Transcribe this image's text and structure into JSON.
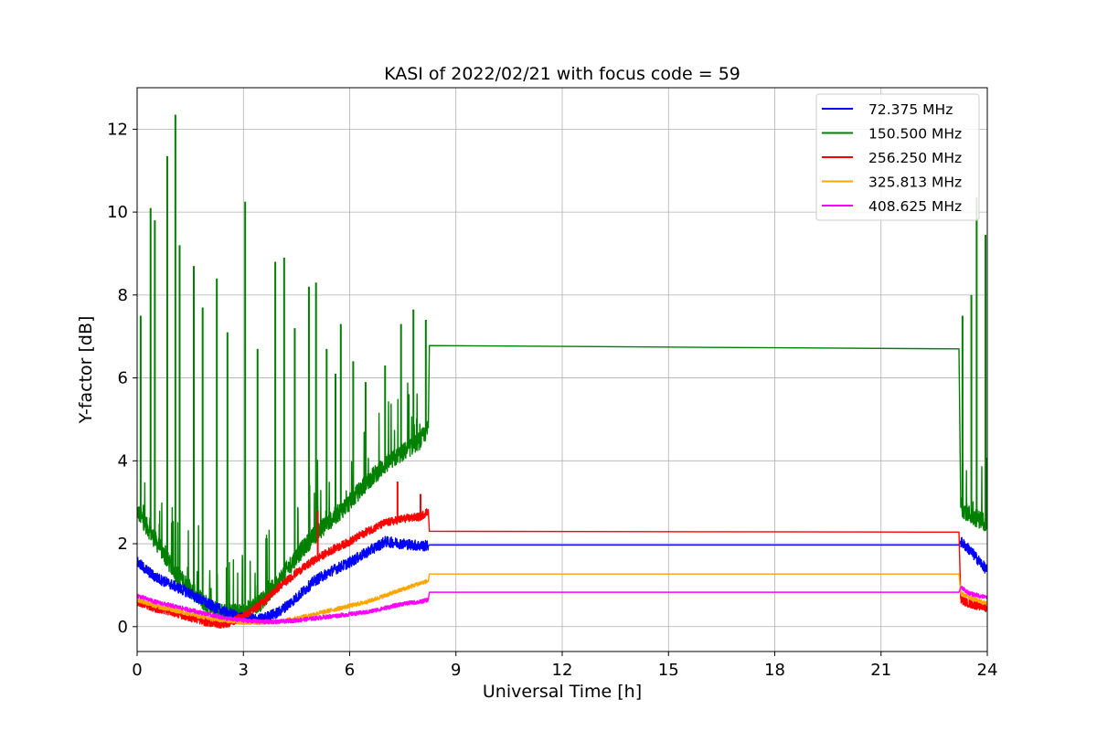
{
  "chart_data": {
    "type": "line",
    "title": "KASI of 2022/02/21 with focus code = 59",
    "xlabel": "Universal Time [h]",
    "ylabel": "Y-factor [dB]",
    "xlim": [
      0,
      24
    ],
    "ylim": [
      -0.6,
      13.0
    ],
    "xticks": [
      0,
      3,
      6,
      9,
      12,
      15,
      18,
      21,
      24
    ],
    "yticks": [
      0,
      2,
      4,
      6,
      8,
      10,
      12
    ],
    "grid": true,
    "legend_position": "top-right",
    "series": [
      {
        "name": " 72.375 MHz",
        "color": "#0000ff",
        "noise": 0.13,
        "x": [
          0,
          0.5,
          1.0,
          1.5,
          2.0,
          2.5,
          3.0,
          3.5,
          4.0,
          4.5,
          5.0,
          5.5,
          6.0,
          6.5,
          7.0,
          7.5,
          8.0,
          8.22,
          8.25,
          23.2,
          23.25,
          23.5,
          24.0
        ],
        "y": [
          1.55,
          1.2,
          1.0,
          0.8,
          0.55,
          0.35,
          0.2,
          0.18,
          0.35,
          0.7,
          1.1,
          1.35,
          1.55,
          1.8,
          2.05,
          2.0,
          1.95,
          1.95,
          1.97,
          1.97,
          2.05,
          1.85,
          1.35
        ]
      },
      {
        "name": "150.500 MHz",
        "color": "#008000",
        "noise": 0.22,
        "x": [
          0,
          0.5,
          1.0,
          1.5,
          2.0,
          2.5,
          3.0,
          3.5,
          4.0,
          4.5,
          5.0,
          5.5,
          6.0,
          6.5,
          7.0,
          7.5,
          8.0,
          8.22,
          8.25,
          23.2,
          23.25,
          23.5,
          24.0
        ],
        "y": [
          2.8,
          2.1,
          1.4,
          0.9,
          0.5,
          0.32,
          0.35,
          0.6,
          1.1,
          1.7,
          2.2,
          2.6,
          3.0,
          3.5,
          3.9,
          4.2,
          4.5,
          4.8,
          6.78,
          6.7,
          2.9,
          2.7,
          2.5
        ],
        "spikes": [
          [
            0.1,
            7.5
          ],
          [
            0.38,
            10.1
          ],
          [
            0.5,
            9.8
          ],
          [
            0.85,
            11.35
          ],
          [
            1.08,
            12.35
          ],
          [
            1.2,
            9.2
          ],
          [
            1.6,
            8.7
          ],
          [
            1.85,
            7.7
          ],
          [
            2.25,
            8.4
          ],
          [
            2.55,
            7.1
          ],
          [
            3.05,
            10.25
          ],
          [
            3.4,
            6.7
          ],
          [
            3.9,
            8.8
          ],
          [
            4.15,
            8.9
          ],
          [
            4.45,
            7.2
          ],
          [
            4.85,
            8.2
          ],
          [
            5.05,
            8.3
          ],
          [
            5.35,
            6.7
          ],
          [
            5.6,
            6.1
          ],
          [
            5.75,
            7.3
          ],
          [
            6.1,
            6.4
          ],
          [
            6.45,
            5.9
          ],
          [
            7.0,
            6.3
          ],
          [
            7.45,
            7.3
          ],
          [
            7.8,
            7.65
          ],
          [
            8.15,
            7.4
          ],
          [
            23.3,
            7.5
          ],
          [
            23.55,
            8.0
          ],
          [
            23.7,
            10.35
          ],
          [
            23.95,
            9.45
          ]
        ]
      },
      {
        "name": "256.250 MHz",
        "color": "#ff0000",
        "noise": 0.1,
        "x": [
          0,
          0.5,
          1.0,
          1.5,
          2.0,
          2.5,
          3.0,
          3.5,
          4.0,
          4.5,
          5.0,
          5.5,
          6.0,
          6.5,
          7.0,
          7.5,
          8.0,
          8.22,
          8.25,
          23.2,
          23.25,
          23.5,
          24.0
        ],
        "y": [
          0.6,
          0.45,
          0.35,
          0.22,
          0.1,
          0.05,
          0.25,
          0.55,
          0.95,
          1.3,
          1.6,
          1.85,
          2.05,
          2.3,
          2.5,
          2.6,
          2.65,
          2.8,
          2.3,
          2.28,
          0.65,
          0.55,
          0.45
        ],
        "spikes": [
          [
            5.1,
            2.8
          ],
          [
            7.35,
            3.5
          ],
          [
            8.0,
            3.2
          ]
        ]
      },
      {
        "name": "325.813 MHz",
        "color": "#ffa500",
        "noise": 0.05,
        "x": [
          0,
          0.5,
          1.0,
          1.5,
          2.0,
          2.5,
          3.0,
          3.5,
          4.0,
          4.5,
          5.0,
          5.5,
          6.0,
          6.5,
          7.0,
          7.5,
          8.0,
          8.22,
          8.25,
          23.2,
          23.25,
          23.5,
          24.0
        ],
        "y": [
          0.65,
          0.5,
          0.4,
          0.3,
          0.2,
          0.15,
          0.1,
          0.1,
          0.12,
          0.2,
          0.3,
          0.4,
          0.5,
          0.6,
          0.75,
          0.9,
          1.05,
          1.1,
          1.27,
          1.27,
          0.8,
          0.7,
          0.55
        ]
      },
      {
        "name": "408.625 MHz",
        "color": "#ff00ff",
        "noise": 0.05,
        "x": [
          0,
          0.5,
          1.0,
          1.5,
          2.0,
          2.5,
          3.0,
          3.5,
          4.0,
          4.5,
          5.0,
          5.5,
          6.0,
          6.5,
          7.0,
          7.5,
          8.0,
          8.22,
          8.25,
          23.2,
          23.25,
          23.5,
          24.0
        ],
        "y": [
          0.75,
          0.6,
          0.5,
          0.4,
          0.3,
          0.2,
          0.15,
          0.12,
          0.12,
          0.15,
          0.2,
          0.25,
          0.3,
          0.35,
          0.45,
          0.55,
          0.6,
          0.65,
          0.83,
          0.83,
          0.95,
          0.8,
          0.7
        ]
      }
    ]
  }
}
